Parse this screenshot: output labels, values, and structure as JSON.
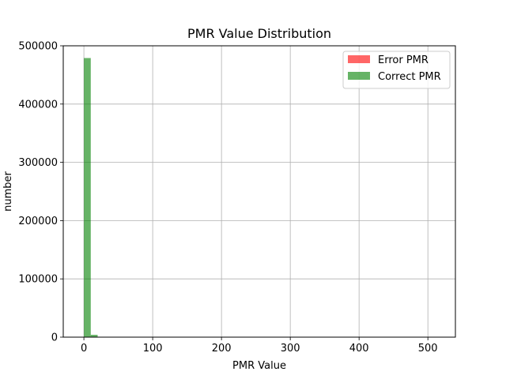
{
  "chart_data": {
    "type": "bar",
    "title": "PMR Value Distribution",
    "xlabel": "PMR Value",
    "ylabel": "number",
    "xlim": [
      -30,
      540
    ],
    "ylim": [
      0,
      500000
    ],
    "xticks": [
      0,
      100,
      200,
      300,
      400,
      500
    ],
    "yticks": [
      0,
      100000,
      200000,
      300000,
      400000,
      500000
    ],
    "grid": true,
    "legend_position": "top-right",
    "series": [
      {
        "name": "Error PMR",
        "color": "#ff0000",
        "alpha": 0.6,
        "bins": []
      },
      {
        "name": "Correct PMR",
        "color": "#008000",
        "alpha": 0.6,
        "bins": [
          {
            "x0": 0,
            "x1": 10,
            "value": 479000
          },
          {
            "x0": 10,
            "x1": 20,
            "value": 4000
          },
          {
            "x0": 20,
            "x1": 30,
            "value": 300
          },
          {
            "x0": 30,
            "x1": 40,
            "value": 50
          }
        ]
      }
    ]
  }
}
